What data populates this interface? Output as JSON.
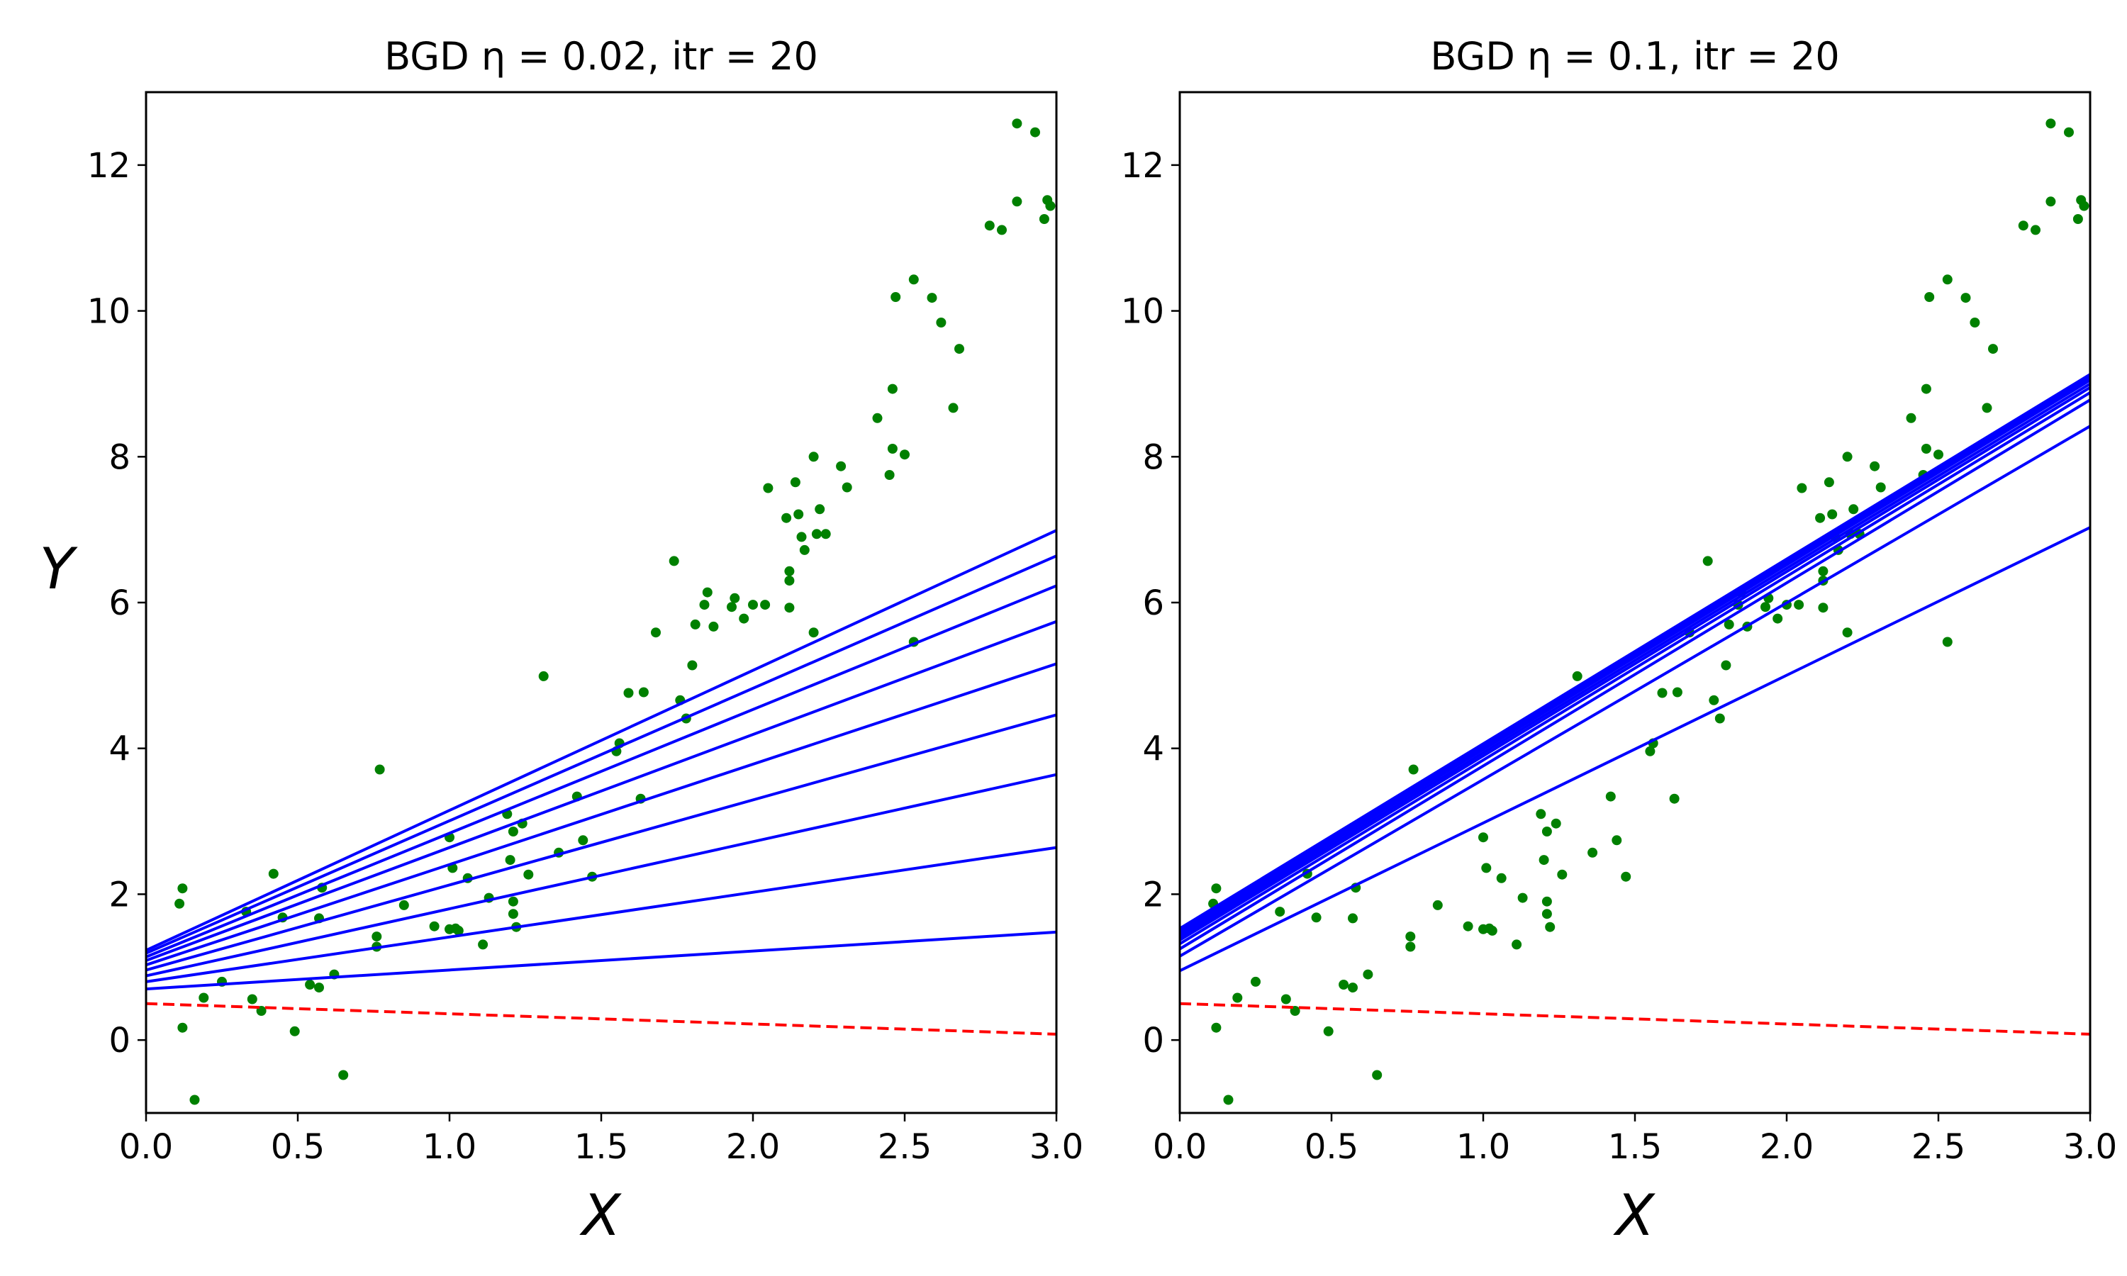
{
  "chart_data": [
    {
      "type": "scatter",
      "title": "BGD  η = 0.02, itr = 20",
      "xlabel": "X",
      "ylabel": "Y",
      "xlim": [
        0.0,
        3.0
      ],
      "ylim": [
        -1.0,
        13.0
      ],
      "xticks": [
        "0.0",
        "0.5",
        "1.0",
        "1.5",
        "2.0",
        "2.5",
        "3.0"
      ],
      "yticks": [
        "0",
        "2",
        "4",
        "6",
        "8",
        "10",
        "12"
      ],
      "grid": false,
      "colors": {
        "points": "#008000",
        "fits": "#0000ff",
        "initial": "#ff0000"
      },
      "initial_line": {
        "x": [
          0.0,
          3.0
        ],
        "y": [
          0.5,
          0.08
        ]
      },
      "fit_lines": [
        {
          "x": [
            0.0,
            3.0
          ],
          "y": [
            0.7,
            1.48
          ]
        },
        {
          "x": [
            0.0,
            3.0
          ],
          "y": [
            0.8,
            2.64
          ]
        },
        {
          "x": [
            0.0,
            3.0
          ],
          "y": [
            0.88,
            3.64
          ]
        },
        {
          "x": [
            0.0,
            3.0
          ],
          "y": [
            0.96,
            4.46
          ]
        },
        {
          "x": [
            0.0,
            3.0
          ],
          "y": [
            1.03,
            5.16
          ]
        },
        {
          "x": [
            0.0,
            3.0
          ],
          "y": [
            1.09,
            5.74
          ]
        },
        {
          "x": [
            0.0,
            3.0
          ],
          "y": [
            1.14,
            6.23
          ]
        },
        {
          "x": [
            0.0,
            3.0
          ],
          "y": [
            1.19,
            6.64
          ]
        },
        {
          "x": [
            0.0,
            3.0
          ],
          "y": [
            1.23,
            6.99
          ]
        }
      ],
      "points": [
        [
          0.11,
          1.87
        ],
        [
          0.12,
          2.08
        ],
        [
          0.12,
          0.17
        ],
        [
          0.16,
          -0.82
        ],
        [
          0.19,
          0.58
        ],
        [
          0.25,
          0.8
        ],
        [
          0.33,
          1.76
        ],
        [
          0.35,
          0.56
        ],
        [
          0.38,
          0.4
        ],
        [
          0.42,
          2.28
        ],
        [
          0.45,
          1.68
        ],
        [
          0.49,
          0.12
        ],
        [
          0.54,
          0.76
        ],
        [
          0.57,
          0.72
        ],
        [
          0.57,
          1.67
        ],
        [
          0.58,
          2.09
        ],
        [
          0.62,
          0.9
        ],
        [
          0.65,
          -0.48
        ],
        [
          0.76,
          1.28
        ],
        [
          0.76,
          1.42
        ],
        [
          0.77,
          3.71
        ],
        [
          0.85,
          1.85
        ],
        [
          0.95,
          1.56
        ],
        [
          1.0,
          1.52
        ],
        [
          1.0,
          2.78
        ],
        [
          1.01,
          2.36
        ],
        [
          1.02,
          1.53
        ],
        [
          1.03,
          1.5
        ],
        [
          1.06,
          2.22
        ],
        [
          1.11,
          1.31
        ],
        [
          1.13,
          1.95
        ],
        [
          1.19,
          3.1
        ],
        [
          1.2,
          2.47
        ],
        [
          1.21,
          2.86
        ],
        [
          1.21,
          1.73
        ],
        [
          1.21,
          1.9
        ],
        [
          1.22,
          1.55
        ],
        [
          1.24,
          2.97
        ],
        [
          1.26,
          2.27
        ],
        [
          1.31,
          4.99
        ],
        [
          1.36,
          2.57
        ],
        [
          1.42,
          3.34
        ],
        [
          1.44,
          2.74
        ],
        [
          1.47,
          2.24
        ],
        [
          1.55,
          3.96
        ],
        [
          1.56,
          4.07
        ],
        [
          1.59,
          4.76
        ],
        [
          1.63,
          3.31
        ],
        [
          1.64,
          4.77
        ],
        [
          1.68,
          5.59
        ],
        [
          1.74,
          6.57
        ],
        [
          1.76,
          4.66
        ],
        [
          1.78,
          4.41
        ],
        [
          1.8,
          5.14
        ],
        [
          1.81,
          5.7
        ],
        [
          1.84,
          5.97
        ],
        [
          1.85,
          6.14
        ],
        [
          1.87,
          5.67
        ],
        [
          1.93,
          5.94
        ],
        [
          1.94,
          6.06
        ],
        [
          1.97,
          5.78
        ],
        [
          2.0,
          5.97
        ],
        [
          2.04,
          5.97
        ],
        [
          2.05,
          7.57
        ],
        [
          2.11,
          7.16
        ],
        [
          2.12,
          6.43
        ],
        [
          2.12,
          6.3
        ],
        [
          2.12,
          5.93
        ],
        [
          2.14,
          7.65
        ],
        [
          2.15,
          7.21
        ],
        [
          2.16,
          6.9
        ],
        [
          2.17,
          6.72
        ],
        [
          2.2,
          8.0
        ],
        [
          2.2,
          5.59
        ],
        [
          2.21,
          6.94
        ],
        [
          2.22,
          7.28
        ],
        [
          2.24,
          6.94
        ],
        [
          2.29,
          7.87
        ],
        [
          2.31,
          7.58
        ],
        [
          2.41,
          8.53
        ],
        [
          2.45,
          7.75
        ],
        [
          2.46,
          8.93
        ],
        [
          2.46,
          8.11
        ],
        [
          2.47,
          10.19
        ],
        [
          2.5,
          8.03
        ],
        [
          2.53,
          10.43
        ],
        [
          2.53,
          5.46
        ],
        [
          2.59,
          10.18
        ],
        [
          2.62,
          9.84
        ],
        [
          2.66,
          8.67
        ],
        [
          2.68,
          9.48
        ],
        [
          2.78,
          11.17
        ],
        [
          2.82,
          11.11
        ],
        [
          2.87,
          12.57
        ],
        [
          2.87,
          11.5
        ],
        [
          2.93,
          12.45
        ],
        [
          2.96,
          11.26
        ],
        [
          2.97,
          11.52
        ],
        [
          2.98,
          11.44
        ]
      ]
    },
    {
      "type": "scatter",
      "title": "BGD  η = 0.1, itr = 20",
      "xlabel": "X",
      "ylabel": "",
      "xlim": [
        0.0,
        3.0
      ],
      "ylim": [
        -1.0,
        13.0
      ],
      "xticks": [
        "0.0",
        "0.5",
        "1.0",
        "1.5",
        "2.0",
        "2.5",
        "3.0"
      ],
      "yticks": [
        "0",
        "2",
        "4",
        "6",
        "8",
        "10",
        "12"
      ],
      "grid": false,
      "colors": {
        "points": "#008000",
        "fits": "#0000ff",
        "initial": "#ff0000"
      },
      "initial_line": {
        "x": [
          0.0,
          3.0
        ],
        "y": [
          0.5,
          0.08
        ]
      },
      "fit_lines": [
        {
          "x": [
            0.0,
            3.0
          ],
          "y": [
            0.95,
            7.03
          ]
        },
        {
          "x": [
            0.0,
            3.0
          ],
          "y": [
            1.15,
            8.42
          ]
        },
        {
          "x": [
            0.0,
            3.0
          ],
          "y": [
            1.25,
            8.78
          ]
        },
        {
          "x": [
            0.0,
            3.0
          ],
          "y": [
            1.32,
            8.88
          ]
        },
        {
          "x": [
            0.0,
            3.0
          ],
          "y": [
            1.37,
            8.95
          ]
        },
        {
          "x": [
            0.0,
            3.0
          ],
          "y": [
            1.41,
            9.0
          ]
        },
        {
          "x": [
            0.0,
            3.0
          ],
          "y": [
            1.45,
            9.05
          ]
        },
        {
          "x": [
            0.0,
            3.0
          ],
          "y": [
            1.49,
            9.09
          ]
        },
        {
          "x": [
            0.0,
            3.0
          ],
          "y": [
            1.53,
            9.13
          ]
        }
      ],
      "points": [
        [
          0.11,
          1.87
        ],
        [
          0.12,
          2.08
        ],
        [
          0.12,
          0.17
        ],
        [
          0.16,
          -0.82
        ],
        [
          0.19,
          0.58
        ],
        [
          0.25,
          0.8
        ],
        [
          0.33,
          1.76
        ],
        [
          0.35,
          0.56
        ],
        [
          0.38,
          0.4
        ],
        [
          0.42,
          2.28
        ],
        [
          0.45,
          1.68
        ],
        [
          0.49,
          0.12
        ],
        [
          0.54,
          0.76
        ],
        [
          0.57,
          0.72
        ],
        [
          0.57,
          1.67
        ],
        [
          0.58,
          2.09
        ],
        [
          0.62,
          0.9
        ],
        [
          0.65,
          -0.48
        ],
        [
          0.76,
          1.28
        ],
        [
          0.76,
          1.42
        ],
        [
          0.77,
          3.71
        ],
        [
          0.85,
          1.85
        ],
        [
          0.95,
          1.56
        ],
        [
          1.0,
          1.52
        ],
        [
          1.0,
          2.78
        ],
        [
          1.01,
          2.36
        ],
        [
          1.02,
          1.53
        ],
        [
          1.03,
          1.5
        ],
        [
          1.06,
          2.22
        ],
        [
          1.11,
          1.31
        ],
        [
          1.13,
          1.95
        ],
        [
          1.19,
          3.1
        ],
        [
          1.2,
          2.47
        ],
        [
          1.21,
          2.86
        ],
        [
          1.21,
          1.73
        ],
        [
          1.21,
          1.9
        ],
        [
          1.22,
          1.55
        ],
        [
          1.24,
          2.97
        ],
        [
          1.26,
          2.27
        ],
        [
          1.31,
          4.99
        ],
        [
          1.36,
          2.57
        ],
        [
          1.42,
          3.34
        ],
        [
          1.44,
          2.74
        ],
        [
          1.47,
          2.24
        ],
        [
          1.55,
          3.96
        ],
        [
          1.56,
          4.07
        ],
        [
          1.59,
          4.76
        ],
        [
          1.63,
          3.31
        ],
        [
          1.64,
          4.77
        ],
        [
          1.68,
          5.59
        ],
        [
          1.74,
          6.57
        ],
        [
          1.76,
          4.66
        ],
        [
          1.78,
          4.41
        ],
        [
          1.8,
          5.14
        ],
        [
          1.81,
          5.7
        ],
        [
          1.84,
          5.97
        ],
        [
          1.85,
          6.14
        ],
        [
          1.87,
          5.67
        ],
        [
          1.93,
          5.94
        ],
        [
          1.94,
          6.06
        ],
        [
          1.97,
          5.78
        ],
        [
          2.0,
          5.97
        ],
        [
          2.04,
          5.97
        ],
        [
          2.05,
          7.57
        ],
        [
          2.11,
          7.16
        ],
        [
          2.12,
          6.43
        ],
        [
          2.12,
          6.3
        ],
        [
          2.12,
          5.93
        ],
        [
          2.14,
          7.65
        ],
        [
          2.15,
          7.21
        ],
        [
          2.16,
          6.9
        ],
        [
          2.17,
          6.72
        ],
        [
          2.2,
          8.0
        ],
        [
          2.2,
          5.59
        ],
        [
          2.21,
          6.94
        ],
        [
          2.22,
          7.28
        ],
        [
          2.24,
          6.94
        ],
        [
          2.29,
          7.87
        ],
        [
          2.31,
          7.58
        ],
        [
          2.41,
          8.53
        ],
        [
          2.45,
          7.75
        ],
        [
          2.46,
          8.93
        ],
        [
          2.46,
          8.11
        ],
        [
          2.47,
          10.19
        ],
        [
          2.5,
          8.03
        ],
        [
          2.53,
          10.43
        ],
        [
          2.53,
          5.46
        ],
        [
          2.59,
          10.18
        ],
        [
          2.62,
          9.84
        ],
        [
          2.66,
          8.67
        ],
        [
          2.68,
          9.48
        ],
        [
          2.78,
          11.17
        ],
        [
          2.82,
          11.11
        ],
        [
          2.87,
          12.57
        ],
        [
          2.87,
          11.5
        ],
        [
          2.93,
          12.45
        ],
        [
          2.96,
          11.26
        ],
        [
          2.97,
          11.52
        ],
        [
          2.98,
          11.44
        ]
      ]
    }
  ]
}
